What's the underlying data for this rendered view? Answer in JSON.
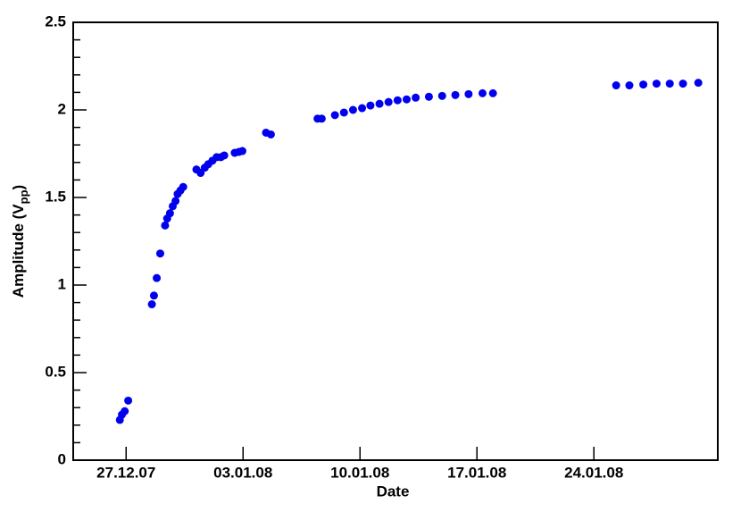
{
  "chart_data": {
    "type": "scatter",
    "xlabel": "Date",
    "ylabel": [
      "Amplitude (V",
      "pp",
      ")"
    ],
    "color": "#0000ee",
    "x": [
      "2007-12-26T15:00",
      "2007-12-26T18:00",
      "2007-12-26T22:00",
      "2007-12-27T03:00",
      "2007-12-28T13:00",
      "2007-12-28T16:00",
      "2007-12-28T20:00",
      "2007-12-29T01:00",
      "2007-12-29T08:00",
      "2007-12-29T11:00",
      "2007-12-29T15:00",
      "2007-12-29T19:00",
      "2007-12-29T23:00",
      "2007-12-30T02:00",
      "2007-12-30T06:00",
      "2007-12-30T10:00",
      "2007-12-31T05:00",
      "2007-12-31T11:00",
      "2007-12-31T17:00",
      "2007-12-31T22:00",
      "2008-01-01T04:00",
      "2008-01-01T10:00",
      "2008-01-01T16:00",
      "2008-01-01T21:00",
      "2008-01-02T12:00",
      "2008-01-02T18:00",
      "2008-01-02T23:00",
      "2008-01-04T09:00",
      "2008-01-04T16:00",
      "2008-01-07T11:00",
      "2008-01-07T17:00",
      "2008-01-08T12:00",
      "2008-01-09T01:00",
      "2008-01-09T14:00",
      "2008-01-10T03:00",
      "2008-01-10T15:00",
      "2008-01-11T04:00",
      "2008-01-11T17:00",
      "2008-01-12T06:00",
      "2008-01-12T19:00",
      "2008-01-13T08:00",
      "2008-01-14T03:00",
      "2008-01-14T22:00",
      "2008-01-15T17:00",
      "2008-01-16T12:00",
      "2008-01-17T08:00",
      "2008-01-17T23:00",
      "2008-01-25T08:00",
      "2008-01-26T03:00",
      "2008-01-26T23:00",
      "2008-01-27T18:00",
      "2008-01-28T13:00",
      "2008-01-29T08:00",
      "2008-01-30T06:00"
    ],
    "values": [
      0.23,
      0.26,
      0.28,
      0.34,
      0.89,
      0.94,
      1.04,
      1.18,
      1.34,
      1.38,
      1.41,
      1.45,
      1.48,
      1.52,
      1.54,
      1.56,
      1.66,
      1.64,
      1.67,
      1.69,
      1.71,
      1.73,
      1.73,
      1.74,
      1.755,
      1.76,
      1.765,
      1.87,
      1.86,
      1.95,
      1.95,
      1.97,
      1.985,
      2.0,
      2.01,
      2.025,
      2.035,
      2.045,
      2.055,
      2.06,
      2.07,
      2.075,
      2.08,
      2.085,
      2.09,
      2.095,
      2.095,
      2.14,
      2.14,
      2.145,
      2.15,
      2.15,
      2.15,
      2.155
    ],
    "xlim": [
      "2007-12-23T20:00",
      "2008-01-31T10:00"
    ],
    "xticks": [
      {
        "value": "2007-12-27T00:00",
        "label": "27.12.07"
      },
      {
        "value": "2008-01-03T00:00",
        "label": "03.01.08"
      },
      {
        "value": "2008-01-10T00:00",
        "label": "10.01.08"
      },
      {
        "value": "2008-01-17T00:00",
        "label": "17.01.08"
      },
      {
        "value": "2008-01-24T00:00",
        "label": "24.01.08"
      }
    ],
    "ylim": [
      0,
      2.5
    ],
    "yticks": [
      0,
      0.5,
      1,
      1.5,
      2,
      2.5
    ]
  }
}
